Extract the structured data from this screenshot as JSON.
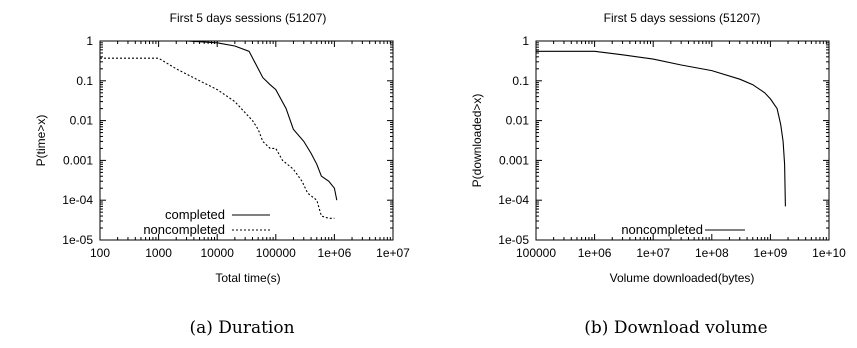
{
  "chart_data": [
    {
      "type": "line",
      "caption": "(a) Duration",
      "title": "First 5 days sessions (51207)",
      "xlabel": "Total time(s)",
      "ylabel": "P(time>x)",
      "xscale": "log",
      "yscale": "log",
      "xlim": [
        100,
        10000000
      ],
      "ylim": [
        1e-05,
        1
      ],
      "xticks": [
        "100",
        "1000",
        "10000",
        "100000",
        "1e+06",
        "1e+07"
      ],
      "yticks": [
        "1",
        "0.1",
        "0.01",
        "0.001",
        "1e-04",
        "1e-05"
      ],
      "legend_position": "bottom-left",
      "series": [
        {
          "name": "completed",
          "dash": "solid",
          "points": [
            [
              100,
              1
            ],
            [
              3000,
              1
            ],
            [
              10000,
              0.9
            ],
            [
              20000,
              0.75
            ],
            [
              35000,
              0.55
            ],
            [
              50000,
              0.2
            ],
            [
              60000,
              0.12
            ],
            [
              80000,
              0.08
            ],
            [
              100000,
              0.06
            ],
            [
              150000,
              0.02
            ],
            [
              200000,
              0.006
            ],
            [
              300000,
              0.003
            ],
            [
              400000,
              0.0015
            ],
            [
              500000,
              0.0008
            ],
            [
              600000,
              0.0004
            ],
            [
              800000,
              0.0003
            ],
            [
              1000000,
              0.0002
            ],
            [
              1100000,
              0.0001
            ]
          ]
        },
        {
          "name": "noncompleted",
          "dash": "dotted",
          "points": [
            [
              100,
              0.37
            ],
            [
              1000,
              0.37
            ],
            [
              2000,
              0.2
            ],
            [
              5000,
              0.1
            ],
            [
              10000,
              0.06
            ],
            [
              20000,
              0.03
            ],
            [
              40000,
              0.01
            ],
            [
              50000,
              0.006
            ],
            [
              60000,
              0.003
            ],
            [
              80000,
              0.002
            ],
            [
              100000,
              0.002
            ],
            [
              130000,
              0.001
            ],
            [
              200000,
              0.0006
            ],
            [
              280000,
              0.0003
            ],
            [
              350000,
              0.00015
            ],
            [
              500000,
              0.0001
            ],
            [
              600000,
              4e-05
            ],
            [
              800000,
              3.5e-05
            ],
            [
              1000000,
              3.5e-05
            ]
          ]
        }
      ]
    },
    {
      "type": "line",
      "caption": "(b) Download volume",
      "title": "First 5 days sessions (51207)",
      "xlabel": "Volume downloaded(bytes)",
      "ylabel": "P(downloaded>x)",
      "xscale": "log",
      "yscale": "log",
      "xlim": [
        100000,
        10000000000
      ],
      "ylim": [
        1e-05,
        1
      ],
      "xticks": [
        "100000",
        "1e+06",
        "1e+07",
        "1e+08",
        "1e+09",
        "1e+10"
      ],
      "yticks": [
        "1",
        "0.1",
        "0.01",
        "0.001",
        "1e-04",
        "1e-05"
      ],
      "legend_position": "bottom-left",
      "series": [
        {
          "name": "noncompleted",
          "dash": "solid",
          "points": [
            [
              100000,
              0.55
            ],
            [
              1000000,
              0.55
            ],
            [
              3000000,
              0.45
            ],
            [
              10000000,
              0.35
            ],
            [
              30000000,
              0.25
            ],
            [
              100000000,
              0.18
            ],
            [
              300000000,
              0.11
            ],
            [
              500000000,
              0.08
            ],
            [
              800000000,
              0.05
            ],
            [
              1000000000,
              0.035
            ],
            [
              1300000000,
              0.02
            ],
            [
              1500000000,
              0.008
            ],
            [
              1650000000,
              0.003
            ],
            [
              1750000000,
              0.0008
            ],
            [
              1800000000,
              7e-05
            ]
          ]
        }
      ]
    }
  ]
}
